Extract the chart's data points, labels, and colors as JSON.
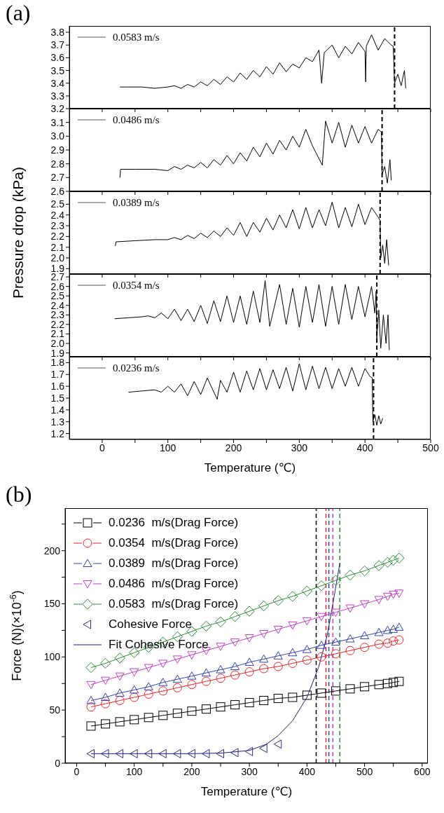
{
  "chart_data": [
    {
      "type": "line",
      "title": "(a)",
      "xlim": [
        -50,
        500
      ],
      "xticks": [
        0,
        {
          "value": 50,
          "label": null
        },
        100,
        {
          "value": 150,
          "label": null
        },
        200,
        {
          "value": 250,
          "label": null
        },
        300,
        {
          "value": 350,
          "label": null
        },
        400,
        {
          "value": 450,
          "label": null
        },
        500
      ],
      "ylim": [
        3.2,
        3.85
      ],
      "yticks": [
        3.2,
        3.3,
        3.4,
        3.5,
        3.6,
        3.7,
        3.8
      ],
      "tick_labels": "y",
      "legend": "top left",
      "ref_lines": [
        {
          "axis": "x",
          "value": 445,
          "color": "#000000",
          "line_style": "dashed"
        }
      ],
      "series": [
        {
          "name": "0.0583 m/s",
          "color": "#000000",
          "x": [
            27,
            40,
            60,
            80,
            100,
            110,
            120,
            130,
            140,
            150,
            160,
            170,
            180,
            190,
            200,
            210,
            220,
            230,
            240,
            250,
            260,
            270,
            280,
            290,
            300,
            310,
            320,
            330,
            334,
            338,
            350,
            360,
            370,
            380,
            390,
            400,
            401,
            402,
            410,
            420,
            430,
            440,
            443,
            445,
            450,
            455,
            460,
            462
          ],
          "values": [
            3.37,
            3.37,
            3.37,
            3.36,
            3.37,
            3.38,
            3.36,
            3.39,
            3.37,
            3.41,
            3.38,
            3.43,
            3.39,
            3.45,
            3.41,
            3.48,
            3.43,
            3.5,
            3.45,
            3.53,
            3.47,
            3.56,
            3.49,
            3.55,
            3.52,
            3.6,
            3.57,
            3.66,
            3.4,
            3.64,
            3.7,
            3.6,
            3.69,
            3.63,
            3.72,
            3.65,
            3.41,
            3.69,
            3.78,
            3.66,
            3.75,
            3.7,
            3.69,
            3.4,
            3.47,
            3.38,
            3.5,
            3.36
          ]
        }
      ]
    },
    {
      "type": "line",
      "xlim": [
        -50,
        500
      ],
      "xticks": [
        0,
        {
          "value": 50,
          "label": null
        },
        100,
        {
          "value": 150,
          "label": null
        },
        200,
        {
          "value": 250,
          "label": null
        },
        300,
        {
          "value": 350,
          "label": null
        },
        400,
        {
          "value": 450,
          "label": null
        },
        500
      ],
      "ylim": [
        2.6,
        3.2
      ],
      "yticks": [
        2.6,
        2.7,
        2.8,
        2.9,
        {
          "value": 3,
          "label": "3.0"
        },
        3.1
      ],
      "tick_labels": "y",
      "legend": "top left",
      "ref_lines": [
        {
          "axis": "x",
          "value": 426,
          "color": "#000000",
          "line_style": "dashed"
        }
      ],
      "series": [
        {
          "name": "0.0486 m/s",
          "color": "#000000",
          "x": [
            27,
            28,
            50,
            80,
            100,
            110,
            120,
            130,
            140,
            150,
            160,
            170,
            180,
            190,
            200,
            210,
            220,
            230,
            240,
            250,
            260,
            270,
            280,
            290,
            300,
            310,
            320,
            335,
            340,
            350,
            360,
            370,
            380,
            390,
            400,
            410,
            420,
            425,
            426,
            430,
            434,
            438,
            440
          ],
          "values": [
            2.7,
            2.76,
            2.76,
            2.76,
            2.75,
            2.78,
            2.76,
            2.79,
            2.77,
            2.81,
            2.77,
            2.83,
            2.79,
            2.86,
            2.8,
            2.88,
            2.82,
            2.92,
            2.85,
            2.95,
            2.87,
            2.97,
            2.9,
            3.0,
            2.92,
            3.05,
            2.93,
            2.79,
            3.11,
            2.95,
            3.1,
            2.92,
            3.08,
            2.95,
            3.07,
            2.95,
            3.05,
            3.03,
            2.72,
            2.78,
            2.66,
            2.83,
            2.68
          ]
        }
      ]
    },
    {
      "type": "line",
      "ylabel": "Pressure drop (kPa)",
      "xlim": [
        -50,
        500
      ],
      "xticks": [
        0,
        {
          "value": 50,
          "label": null
        },
        100,
        {
          "value": 150,
          "label": null
        },
        200,
        {
          "value": 250,
          "label": null
        },
        300,
        {
          "value": 350,
          "label": null
        },
        400,
        {
          "value": 450,
          "label": null
        },
        500
      ],
      "ylim": [
        1.85,
        2.62
      ],
      "yticks": [
        1.9,
        {
          "value": 2,
          "label": "2.0"
        },
        2.1,
        2.2,
        2.3,
        2.4,
        2.5
      ],
      "tick_labels": "y",
      "legend": "top left",
      "ref_lines": [
        {
          "axis": "x",
          "value": 423,
          "color": "#000000",
          "line_style": "dashed"
        }
      ],
      "series": [
        {
          "name": "0.0389 m/s",
          "color": "#000000",
          "x": [
            20,
            21,
            50,
            80,
            100,
            110,
            120,
            130,
            140,
            150,
            160,
            170,
            180,
            190,
            200,
            210,
            220,
            230,
            240,
            250,
            260,
            270,
            280,
            290,
            300,
            310,
            320,
            330,
            340,
            350,
            360,
            370,
            380,
            390,
            400,
            410,
            420,
            423,
            424,
            427,
            430,
            433,
            436
          ],
          "values": [
            2.11,
            2.15,
            2.16,
            2.17,
            2.17,
            2.19,
            2.17,
            2.21,
            2.18,
            2.23,
            2.19,
            2.25,
            2.2,
            2.28,
            2.21,
            2.33,
            2.2,
            2.33,
            2.24,
            2.37,
            2.26,
            2.4,
            2.28,
            2.45,
            2.27,
            2.47,
            2.28,
            2.45,
            2.3,
            2.52,
            2.28,
            2.47,
            2.29,
            2.5,
            2.31,
            2.47,
            2.38,
            2.35,
            2.0,
            2.12,
            1.95,
            2.17,
            1.93
          ]
        }
      ]
    },
    {
      "type": "line",
      "xlim": [
        -50,
        500
      ],
      "xticks": [
        0,
        {
          "value": 50,
          "label": null
        },
        100,
        {
          "value": 150,
          "label": null
        },
        200,
        {
          "value": 250,
          "label": null
        },
        300,
        {
          "value": 350,
          "label": null
        },
        400,
        {
          "value": 450,
          "label": null
        },
        500
      ],
      "ylim": [
        1.86,
        2.73
      ],
      "yticks": [
        1.9,
        {
          "value": 2,
          "label": "2.0"
        },
        2.1,
        2.2,
        2.3,
        2.4,
        2.5,
        2.6,
        2.7
      ],
      "tick_labels": "y",
      "legend": "top left",
      "ref_lines": [
        {
          "axis": "x",
          "value": 418,
          "color": "#000000",
          "line_style": "dashed"
        }
      ],
      "series": [
        {
          "name": "0.0354 m/s",
          "color": "#000000",
          "x": [
            19,
            40,
            60,
            70,
            80,
            90,
            100,
            110,
            120,
            130,
            140,
            150,
            160,
            170,
            180,
            190,
            200,
            210,
            220,
            230,
            240,
            248,
            255,
            270,
            280,
            290,
            300,
            310,
            320,
            330,
            340,
            350,
            360,
            370,
            380,
            390,
            400,
            410,
            415,
            417,
            418,
            421,
            424,
            428,
            432,
            435,
            437
          ],
          "values": [
            2.26,
            2.27,
            2.28,
            2.29,
            2.27,
            2.32,
            2.26,
            2.36,
            2.24,
            2.36,
            2.23,
            2.4,
            2.21,
            2.45,
            2.23,
            2.5,
            2.22,
            2.5,
            2.2,
            2.55,
            2.22,
            2.66,
            2.18,
            2.62,
            2.2,
            2.58,
            2.17,
            2.6,
            2.22,
            2.62,
            2.18,
            2.6,
            2.2,
            2.62,
            2.25,
            2.6,
            2.28,
            2.6,
            2.32,
            2.55,
            2.05,
            2.35,
            1.95,
            2.3,
            2.0,
            2.3,
            1.93
          ]
        }
      ]
    },
    {
      "type": "line",
      "xlabel": "Temperature (℃)",
      "xlim": [
        -50,
        500
      ],
      "xticks": [
        0,
        {
          "value": 50,
          "label": null
        },
        100,
        {
          "value": 150,
          "label": null
        },
        200,
        {
          "value": 250,
          "label": null
        },
        300,
        {
          "value": 350,
          "label": null
        },
        400,
        {
          "value": 450,
          "label": null
        },
        500
      ],
      "ylim": [
        1.15,
        1.85
      ],
      "yticks": [
        1.2,
        1.3,
        1.4,
        1.5,
        1.6,
        1.7,
        1.8
      ],
      "legend": "top left",
      "ref_lines": [
        {
          "axis": "x",
          "value": 413,
          "color": "#000000",
          "line_style": "dashed"
        }
      ],
      "series": [
        {
          "name": "0.0236 m/s",
          "color": "#000000",
          "x": [
            40,
            60,
            80,
            90,
            100,
            110,
            120,
            130,
            140,
            150,
            160,
            175,
            180,
            190,
            200,
            210,
            220,
            230,
            240,
            250,
            260,
            270,
            280,
            290,
            300,
            310,
            320,
            330,
            340,
            350,
            360,
            370,
            380,
            390,
            400,
            408,
            411,
            412,
            415,
            418,
            421,
            424,
            427
          ],
          "values": [
            1.55,
            1.56,
            1.57,
            1.55,
            1.6,
            1.55,
            1.62,
            1.52,
            1.64,
            1.53,
            1.67,
            1.49,
            1.65,
            1.55,
            1.72,
            1.55,
            1.73,
            1.57,
            1.75,
            1.57,
            1.74,
            1.58,
            1.76,
            1.56,
            1.79,
            1.57,
            1.77,
            1.58,
            1.76,
            1.58,
            1.75,
            1.6,
            1.76,
            1.6,
            1.75,
            1.68,
            1.67,
            1.3,
            1.36,
            1.27,
            1.35,
            1.28,
            1.33
          ]
        }
      ]
    },
    {
      "type": "line",
      "title": "(b)",
      "xlabel": "Temperature (℃)",
      "ylabel": "Force (N)(×10$^{-6}$)",
      "xlim": [
        -20,
        610
      ],
      "xticks": [
        0,
        {
          "value": 50,
          "label": null
        },
        100,
        {
          "value": 150,
          "label": null
        },
        200,
        {
          "value": 250,
          "label": null
        },
        300,
        {
          "value": 350,
          "label": null
        },
        400,
        {
          "value": 450,
          "label": null
        },
        500,
        {
          "value": 550,
          "label": null
        },
        600
      ],
      "ylim": [
        0,
        240
      ],
      "yticks": [
        0,
        {
          "value": 25,
          "label": null
        },
        50,
        {
          "value": 75,
          "label": null
        },
        100,
        {
          "value": 125,
          "label": null
        },
        150,
        {
          "value": 175,
          "label": null
        },
        200,
        {
          "value": 225,
          "label": null
        }
      ],
      "legend": "top left",
      "ref_lines": [
        {
          "axis": "x",
          "value": 416,
          "color": "#000000",
          "line_style": "dashed"
        },
        {
          "axis": "x",
          "value": 433,
          "color": "#e8262b",
          "line_style": "dashed"
        },
        {
          "axis": "x",
          "value": 438,
          "color": "#3344aa",
          "line_style": "dashed"
        },
        {
          "axis": "x",
          "value": 445,
          "color": "#c040c0",
          "line_style": "dashed"
        },
        {
          "axis": "x",
          "value": 457,
          "color": "#2e8b3a",
          "line_style": "dashed"
        }
      ],
      "series": [
        {
          "name": "0.0236  m/s(Drag Force)",
          "color": "#000000",
          "marker": "square",
          "x": [
            25,
            50,
            75,
            100,
            125,
            150,
            175,
            200,
            225,
            250,
            275,
            300,
            325,
            350,
            375,
            400,
            425,
            450,
            475,
            500,
            525,
            540,
            550,
            560
          ],
          "values": [
            35,
            37,
            39,
            41,
            43,
            45,
            47,
            49,
            51,
            53,
            55,
            57,
            59,
            61,
            62,
            64,
            66,
            68,
            70,
            72,
            74,
            75,
            76,
            77
          ]
        },
        {
          "name": "0.0354  m/s(Drag Force)",
          "color": "#e8262b",
          "marker": "circle",
          "x": [
            25,
            50,
            75,
            100,
            125,
            150,
            175,
            200,
            225,
            250,
            275,
            300,
            325,
            350,
            375,
            400,
            425,
            450,
            475,
            500,
            525,
            540,
            550,
            560
          ],
          "values": [
            53,
            56,
            59,
            62,
            65,
            68,
            71,
            74,
            77,
            80,
            83,
            86,
            89,
            91,
            94,
            97,
            100,
            103,
            106,
            109,
            112,
            113,
            115,
            116
          ]
        },
        {
          "name": "0.0389  m/s(Drag Force)",
          "color": "#3344aa",
          "marker": "triangle",
          "x": [
            25,
            50,
            75,
            100,
            125,
            150,
            175,
            200,
            225,
            250,
            275,
            300,
            325,
            350,
            375,
            400,
            425,
            450,
            475,
            500,
            525,
            540,
            550,
            560
          ],
          "values": [
            59,
            62,
            66,
            69,
            72,
            76,
            79,
            82,
            85,
            88,
            91,
            95,
            98,
            101,
            104,
            107,
            111,
            114,
            117,
            120,
            123,
            125,
            126,
            128
          ]
        },
        {
          "name": "0.0486  m/s(Drag Force)",
          "color": "#c040c0",
          "marker": "triangle-down",
          "x": [
            25,
            50,
            75,
            100,
            125,
            150,
            175,
            200,
            225,
            250,
            275,
            300,
            325,
            350,
            375,
            400,
            425,
            450,
            475,
            500,
            525,
            540,
            550,
            560
          ],
          "values": [
            74,
            78,
            82,
            86,
            90,
            94,
            98,
            102,
            106,
            110,
            114,
            118,
            122,
            126,
            130,
            134,
            138,
            142,
            146,
            150,
            154,
            157,
            159,
            160
          ]
        },
        {
          "name": "0.0583  m/s(Drag Force)",
          "color": "#2e8b3a",
          "marker": "diamond",
          "x": [
            25,
            50,
            75,
            100,
            125,
            150,
            175,
            200,
            225,
            250,
            275,
            300,
            325,
            350,
            375,
            400,
            425,
            450,
            475,
            500,
            525,
            540,
            550,
            560
          ],
          "values": [
            90,
            94,
            99,
            104,
            109,
            114,
            119,
            124,
            129,
            133,
            138,
            143,
            148,
            153,
            157,
            162,
            167,
            172,
            177,
            181,
            186,
            189,
            191,
            193
          ]
        },
        {
          "name": "Cohesive Force",
          "type": "scatter",
          "color": "#2b2b8c",
          "marker": "triangle-left",
          "x": [
            25,
            50,
            75,
            100,
            125,
            150,
            175,
            200,
            225,
            250,
            275,
            300,
            325,
            350
          ],
          "values": [
            9,
            9,
            9,
            9,
            9,
            9,
            9,
            9,
            9,
            9,
            10,
            11,
            14,
            18
          ]
        },
        {
          "name": "Fit Cohesive Force",
          "color": "#1f1f7a",
          "marker": "none",
          "x": [
            25,
            100,
            200,
            250,
            300,
            330,
            350,
            375,
            400,
            420,
            435,
            445,
            457
          ],
          "values": [
            9,
            9,
            9,
            9.5,
            12,
            18,
            26,
            40,
            62,
            90,
            120,
            150,
            188
          ]
        }
      ]
    }
  ]
}
